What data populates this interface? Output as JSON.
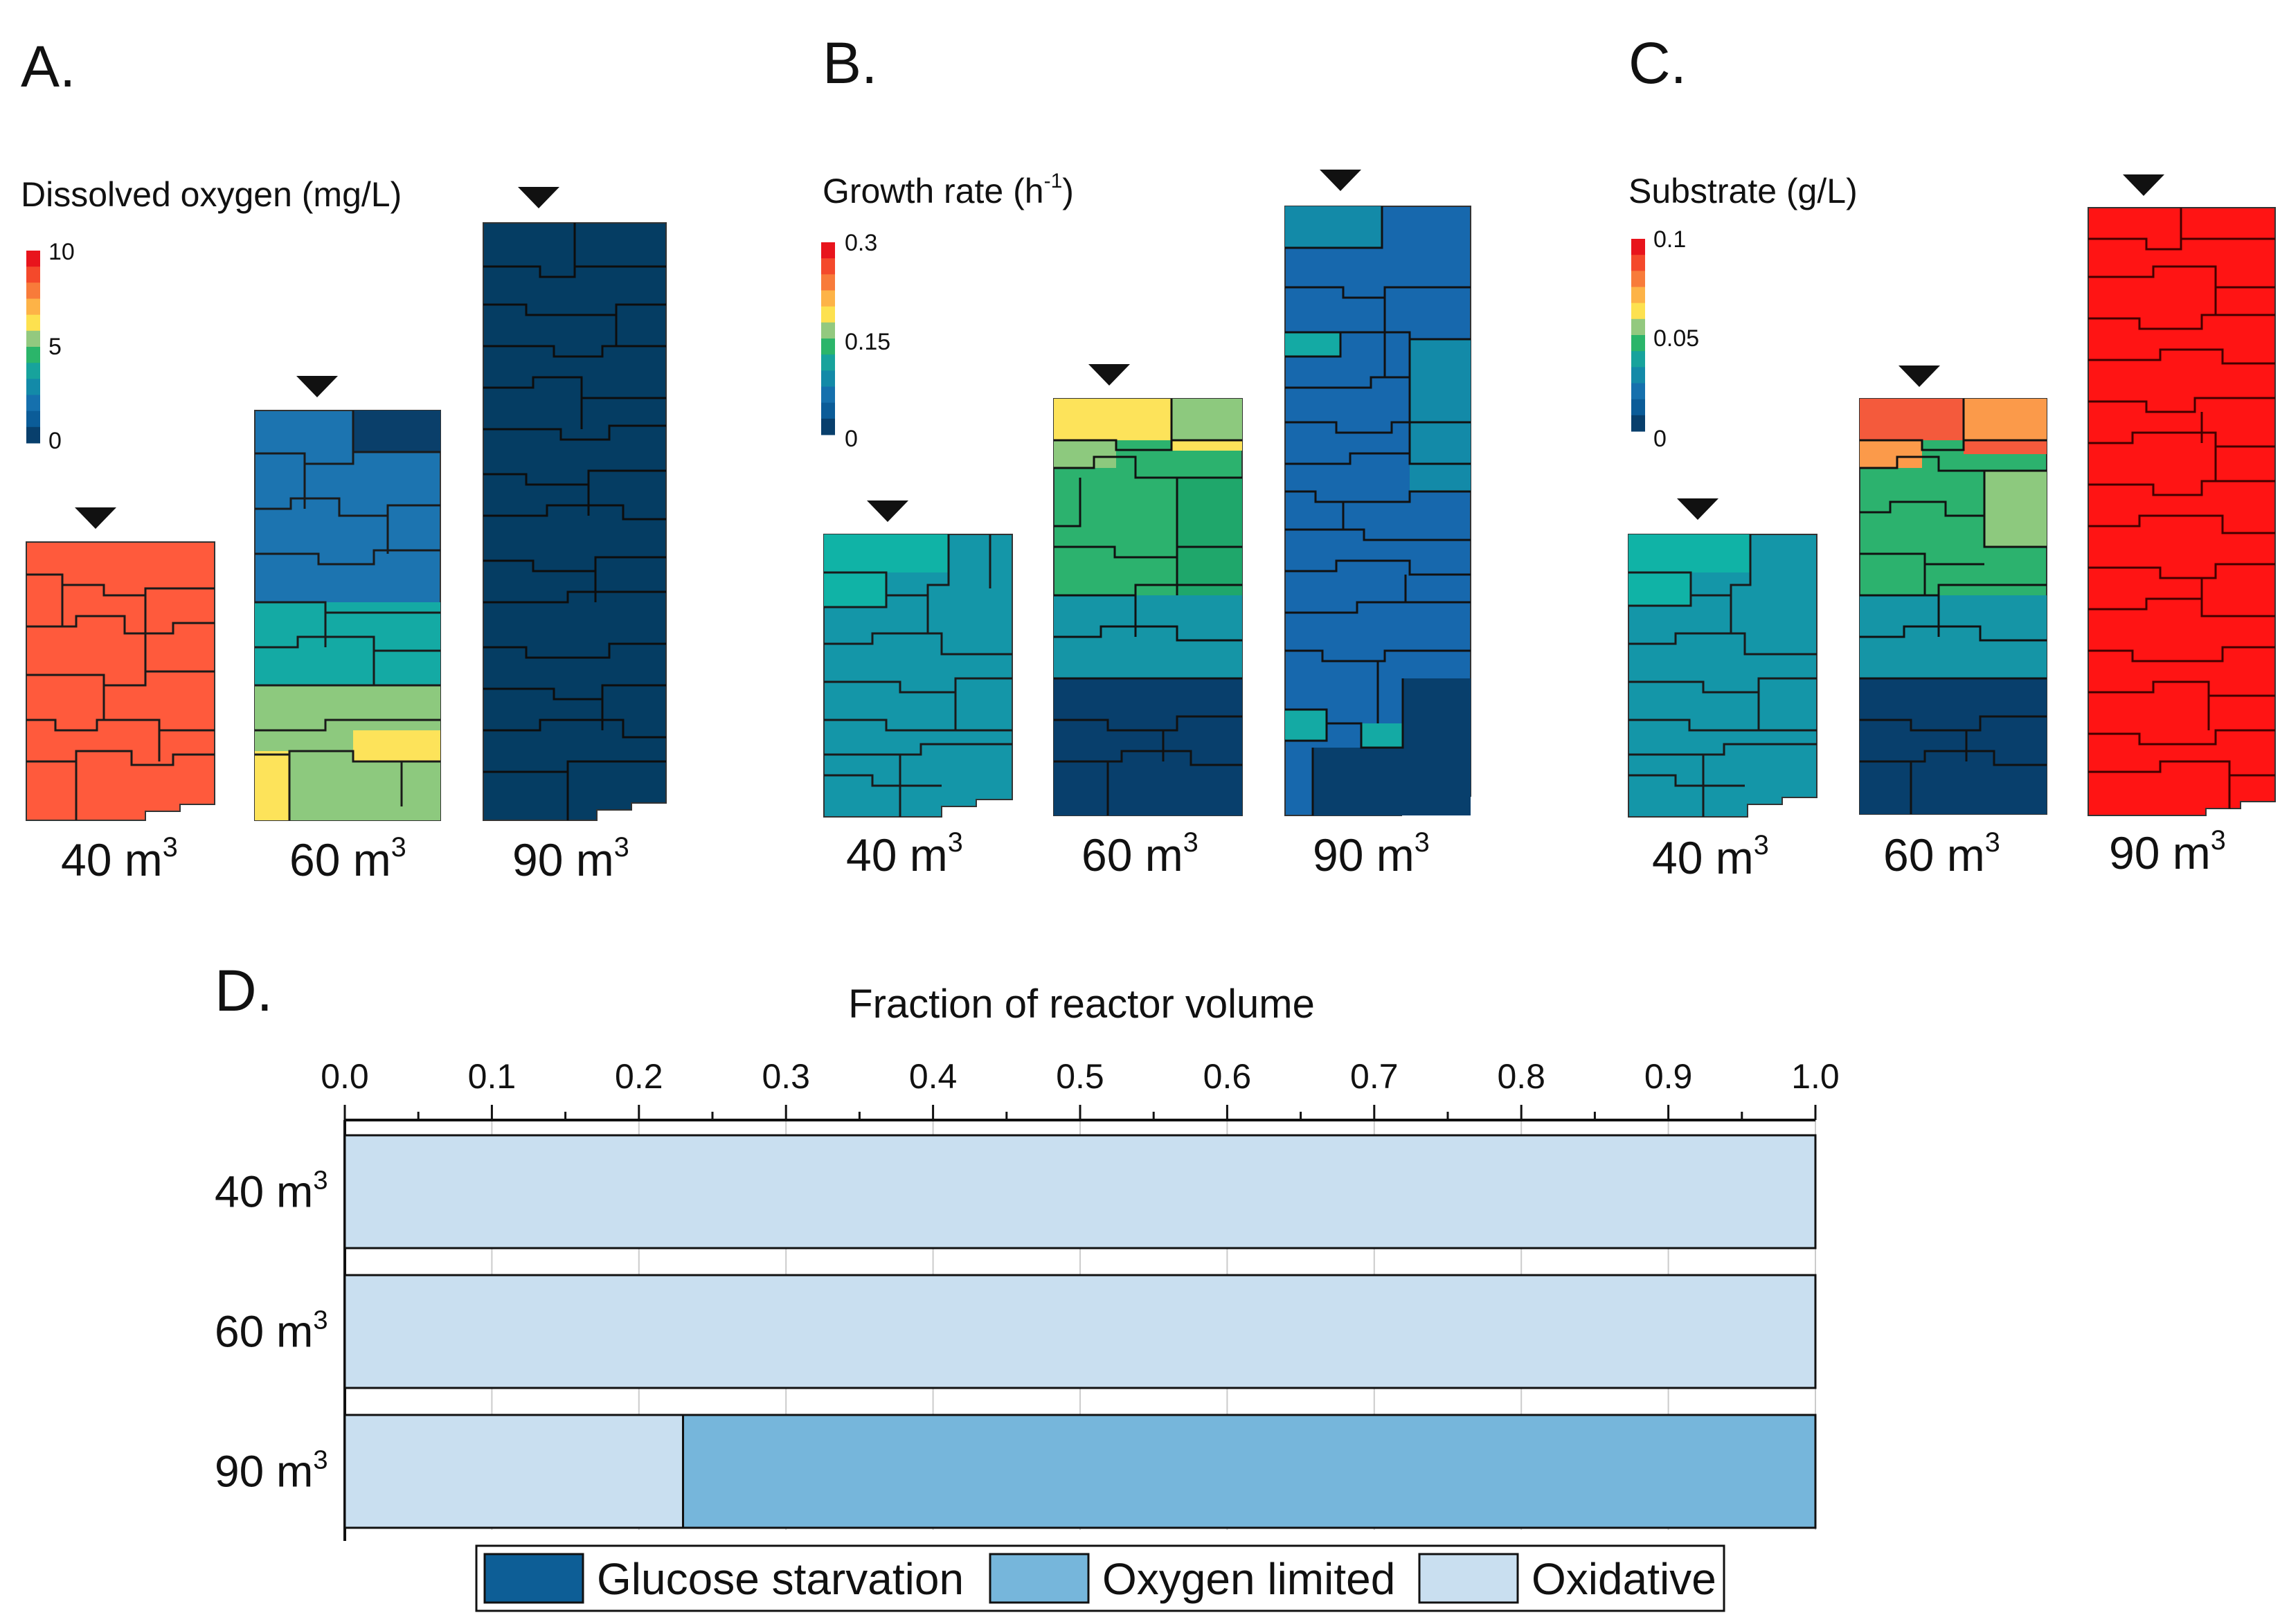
{
  "panels": [
    {
      "letter": "A.",
      "title": "Dissolved oxygen (mg/L)",
      "ticks": [
        "10",
        "5",
        "0"
      ],
      "scale_colors": [
        "#e8141c",
        "#f4492b",
        "#f87b3a",
        "#fdb347",
        "#fde14f",
        "#93c97f",
        "#2bb56a",
        "#17a39c",
        "#138aa8",
        "#1570ad",
        "#0b5c98",
        "#083f6c"
      ],
      "reactors": [
        {
          "volume": "40",
          "unit": "m",
          "exp": "3",
          "color": "#ff5a3c"
        },
        {
          "volume": "60",
          "unit": "m",
          "exp": "3",
          "color": "#1c74b0"
        },
        {
          "volume": "90",
          "unit": "m",
          "exp": "3",
          "color": "#053d63"
        }
      ]
    },
    {
      "letter": "B.",
      "title": "Growth rate",
      "title_unit": "h",
      "title_exp": "-1",
      "ticks": [
        "0.3",
        "0.15",
        "0"
      ],
      "scale_colors": [
        "#e8141c",
        "#f4492b",
        "#f87b3a",
        "#fdb347",
        "#fde14f",
        "#93c97f",
        "#2bb56a",
        "#17a39c",
        "#138aa8",
        "#1570ad",
        "#0b5c98",
        "#083f6c"
      ],
      "reactors": [
        {
          "volume": "40",
          "unit": "m",
          "exp": "3",
          "color": "#1496a8"
        },
        {
          "volume": "60",
          "unit": "m",
          "exp": "3",
          "color": "#2cb26e"
        },
        {
          "volume": "90",
          "unit": "m",
          "exp": "3",
          "color": "#1768ad"
        }
      ]
    },
    {
      "letter": "C.",
      "title": "Substrate (g/L)",
      "ticks": [
        "0.1",
        "0.05",
        "0"
      ],
      "scale_colors": [
        "#e8141c",
        "#f4492b",
        "#f87b3a",
        "#fdb347",
        "#fde14f",
        "#93c97f",
        "#2bb56a",
        "#17a39c",
        "#138aa8",
        "#1570ad",
        "#0b5c98",
        "#083f6c"
      ],
      "reactors": [
        {
          "volume": "40",
          "unit": "m",
          "exp": "3",
          "color": "#1496a8"
        },
        {
          "volume": "60",
          "unit": "m",
          "exp": "3",
          "color": "#1a9aa6"
        },
        {
          "volume": "90",
          "unit": "m",
          "exp": "3",
          "color": "#ff1414"
        }
      ]
    }
  ],
  "panelD": {
    "letter": "D."
  },
  "chart_data": {
    "type": "bar",
    "orientation": "horizontal",
    "stacked": true,
    "title": "Fraction of reactor volume",
    "xlabel": "Fraction of reactor volume",
    "xlim": [
      0,
      1
    ],
    "x_ticks": [
      "0.0",
      "0.1",
      "0.2",
      "0.3",
      "0.4",
      "0.5",
      "0.6",
      "0.7",
      "0.8",
      "0.9",
      "1.0"
    ],
    "categories": [
      "40",
      "60",
      "90"
    ],
    "category_unit": "m",
    "category_exp": "3",
    "series": [
      {
        "name": "Glucose starvation",
        "color": "#0d5e96",
        "values": [
          0.0,
          0.0,
          0.0
        ]
      },
      {
        "name": "Oxygen limited",
        "color": "#76b6db",
        "values": [
          0.0,
          0.0,
          0.77
        ]
      },
      {
        "name": "Oxidative",
        "color": "#c9dff0",
        "values": [
          1.0,
          1.0,
          0.23
        ]
      }
    ],
    "stack_order": [
      "Oxidative",
      "Oxygen limited",
      "Glucose starvation"
    ],
    "legend": "bottom"
  }
}
